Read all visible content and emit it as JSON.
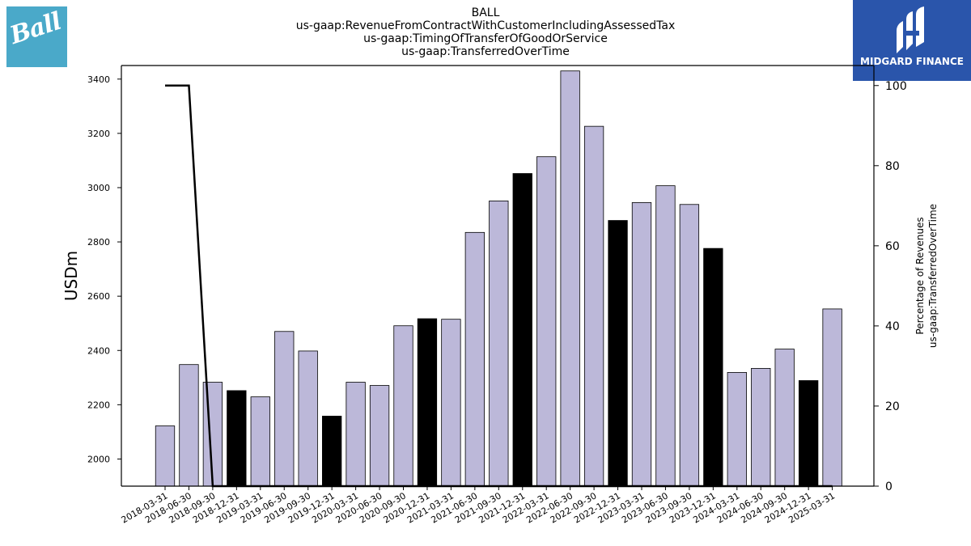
{
  "title_lines": [
    "BALL",
    "us-gaap:RevenueFromContractWithCustomerIncludingAssessedTax",
    "us-gaap:TimingOfTransferOfGoodOrService",
    "us-gaap:TransferredOverTime"
  ],
  "logos": {
    "left": "Ball",
    "right": "MIDGARD FINANCE"
  },
  "chart_data": {
    "type": "bar",
    "categories": [
      "2018-03-31",
      "2018-06-30",
      "2018-09-30",
      "2018-12-31",
      "2019-03-31",
      "2019-06-30",
      "2019-09-30",
      "2019-12-31",
      "2020-03-31",
      "2020-06-30",
      "2020-09-30",
      "2020-12-31",
      "2021-03-31",
      "2021-06-30",
      "2021-09-30",
      "2021-12-31",
      "2022-03-31",
      "2022-06-30",
      "2022-09-30",
      "2022-12-31",
      "2023-03-31",
      "2023-06-30",
      "2023-09-30",
      "2023-12-31",
      "2024-03-31",
      "2024-06-30",
      "2024-09-30",
      "2024-12-31",
      "2025-03-31"
    ],
    "series": [
      {
        "values": [
          2122,
          2348,
          2283,
          2252,
          2229,
          2470,
          2398,
          2158,
          2283,
          2271,
          2491,
          2517,
          2515,
          2835,
          2951,
          3052,
          3114,
          3430,
          3226,
          2879,
          2945,
          3007,
          2938,
          2776,
          2319,
          2334,
          2405,
          2289,
          2553
        ],
        "axis": "left",
        "highlight": [
          false,
          false,
          false,
          true,
          false,
          false,
          false,
          true,
          false,
          false,
          false,
          true,
          false,
          false,
          false,
          true,
          false,
          false,
          false,
          true,
          false,
          false,
          false,
          true,
          false,
          false,
          false,
          true,
          false
        ],
        "color": "#bcb8d9",
        "highlight_color": "#000000"
      },
      {
        "type": "line",
        "axis": "right",
        "values": [
          100,
          100,
          0,
          0,
          0,
          0,
          0,
          0,
          0,
          0,
          0,
          0,
          0,
          0,
          0,
          0,
          0,
          0,
          0,
          0,
          0,
          0,
          0,
          0,
          0,
          0,
          0,
          0,
          0
        ],
        "color": "#000000"
      }
    ],
    "ylabel": "USDm",
    "y2label_lines": [
      "Percentage of Revenues",
      "us-gaap:TransferredOverTime"
    ],
    "ylim": [
      1900,
      3450
    ],
    "yticks": [
      2000,
      2200,
      2400,
      2600,
      2800,
      3000,
      3200,
      3400
    ],
    "y2lim": [
      0,
      105
    ],
    "y2ticks": [
      0,
      20,
      40,
      60,
      80,
      100
    ],
    "grid": false
  }
}
